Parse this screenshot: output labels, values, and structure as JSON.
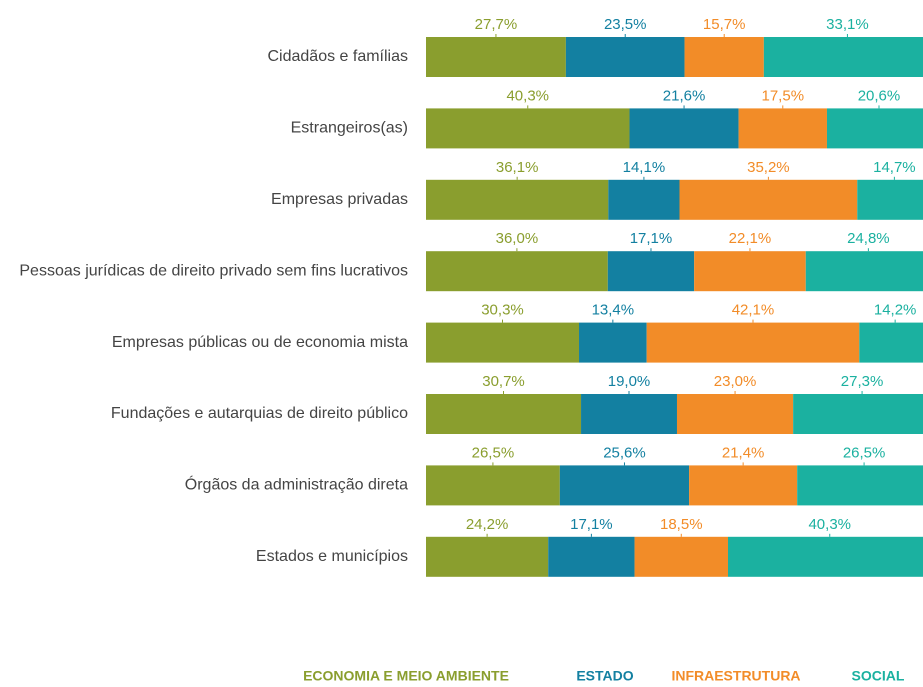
{
  "chart_data": {
    "type": "stacked-bar-horizontal",
    "categories": [
      "Cidadãos e famílias",
      "Estrangeiros(as)",
      "Empresas privadas",
      "Pessoas jurídicas de direito privado sem fins lucrativos",
      "Empresas públicas ou de economia mista",
      "Fundações e autarquias de direito público",
      "Órgãos da administração direta",
      "Estados e municípios"
    ],
    "series": [
      {
        "name": "ECONOMIA E MEIO AMBIENTE",
        "color": "#8a9e2e",
        "values": [
          27.7,
          40.3,
          36.1,
          36.0,
          30.3,
          30.7,
          26.5,
          24.2
        ],
        "value_labels": [
          "27,7%",
          "40,3%",
          "36,1%",
          "36,0%",
          "30,3%",
          "30,7%",
          "26,5%",
          "24,2%"
        ]
      },
      {
        "name": "ESTADO",
        "color": "#1380a1",
        "values": [
          23.5,
          21.6,
          14.1,
          17.1,
          13.4,
          19.0,
          25.6,
          17.1
        ],
        "value_labels": [
          "23,5%",
          "21,6%",
          "14,1%",
          "17,1%",
          "13,4%",
          "19,0%",
          "25,6%",
          "17,1%"
        ]
      },
      {
        "name": "INFRAESTRUTURA",
        "color": "#f28c28",
        "values": [
          15.7,
          17.5,
          35.2,
          22.1,
          42.1,
          23.0,
          21.4,
          18.5
        ],
        "value_labels": [
          "15,7%",
          "17,5%",
          "35,2%",
          "22,1%",
          "42,1%",
          "23,0%",
          "21,4%",
          "18,5%"
        ]
      },
      {
        "name": "SOCIAL",
        "color": "#1bb1a0",
        "values": [
          33.1,
          20.6,
          14.7,
          24.8,
          14.2,
          27.3,
          26.5,
          40.3
        ],
        "value_labels": [
          "33,1%",
          "20,6%",
          "14,7%",
          "24,8%",
          "14,2%",
          "27,3%",
          "26,5%",
          "40,3%"
        ]
      }
    ]
  }
}
